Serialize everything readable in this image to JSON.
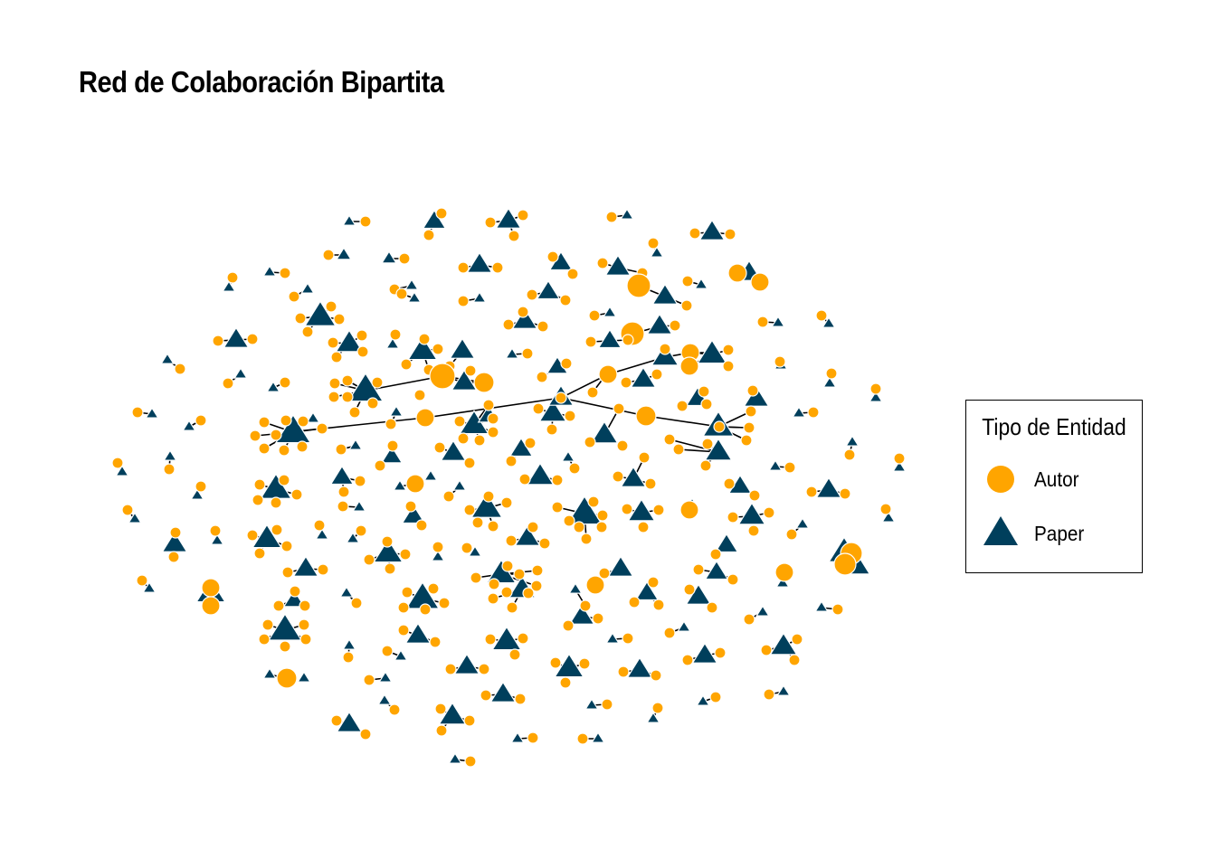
{
  "title": "Red de Colaboración Bipartita",
  "colors": {
    "autor": "#FFA500",
    "paper": "#003F5C",
    "edge": "#000000",
    "node_stroke": "#FFFFFF"
  },
  "legend": {
    "title": "Tipo de Entidad",
    "items": [
      {
        "label": "Autor",
        "shape": "circle",
        "color": "#FFA500"
      },
      {
        "label": "Paper",
        "shape": "triangle",
        "color": "#003F5C"
      }
    ]
  }
}
